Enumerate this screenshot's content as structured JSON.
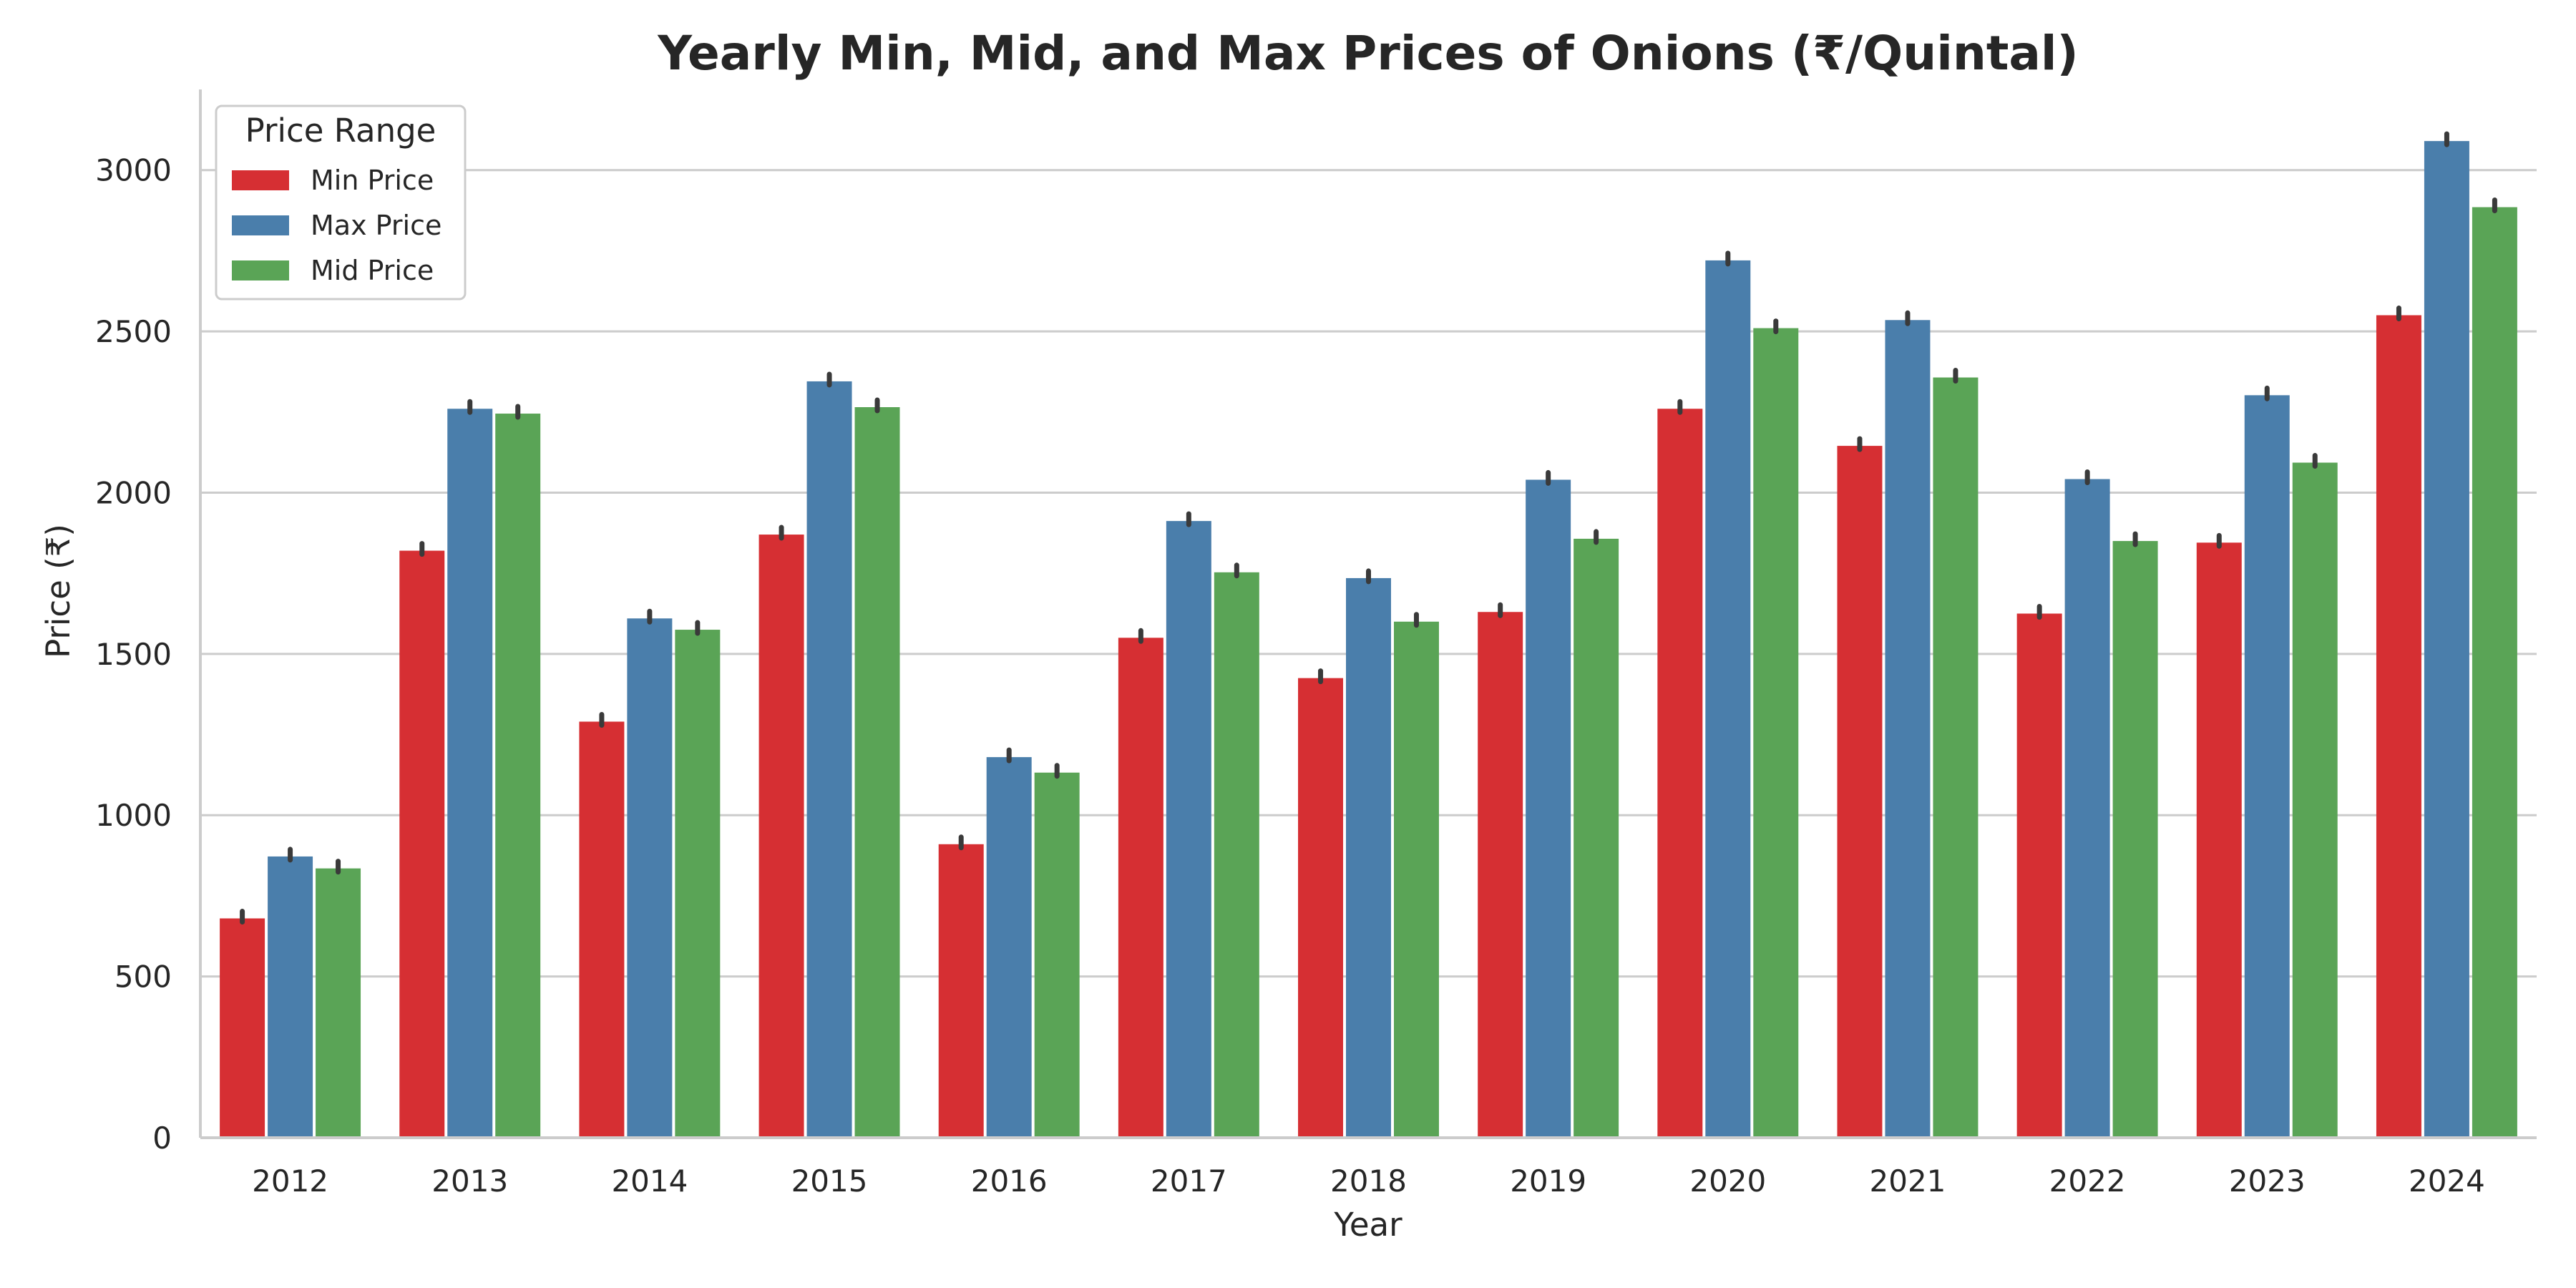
{
  "chart_data": {
    "type": "bar",
    "title": "Yearly Min, Mid, and Max Prices of Onions (₹/Quintal)",
    "xlabel": "Year",
    "ylabel": "Price (₹)",
    "categories": [
      "2012",
      "2013",
      "2014",
      "2015",
      "2016",
      "2017",
      "2018",
      "2019",
      "2020",
      "2021",
      "2022",
      "2023",
      "2024"
    ],
    "series": [
      {
        "name": "Min Price",
        "color": "#d62f33",
        "values": [
          680,
          1820,
          1290,
          1870,
          910,
          1550,
          1425,
          1630,
          2260,
          2145,
          1625,
          1845,
          2550
        ]
      },
      {
        "name": "Max Price",
        "color": "#4a7eab",
        "values": [
          872,
          2260,
          1610,
          2345,
          1180,
          1912,
          1735,
          2040,
          2720,
          2535,
          2042,
          2302,
          3090
        ]
      },
      {
        "name": "Mid Price",
        "color": "#5aa456",
        "values": [
          835,
          2245,
          1575,
          2265,
          1132,
          1753,
          1600,
          1857,
          2510,
          2357,
          1850,
          2093,
          2885
        ]
      }
    ],
    "ylim": [
      0,
      3250
    ],
    "yticks": [
      0,
      500,
      1000,
      1500,
      2000,
      2500,
      3000
    ],
    "grid": "horizontal",
    "error_bars": true,
    "legend": {
      "title": "Price Range",
      "placement": "top-left"
    }
  }
}
